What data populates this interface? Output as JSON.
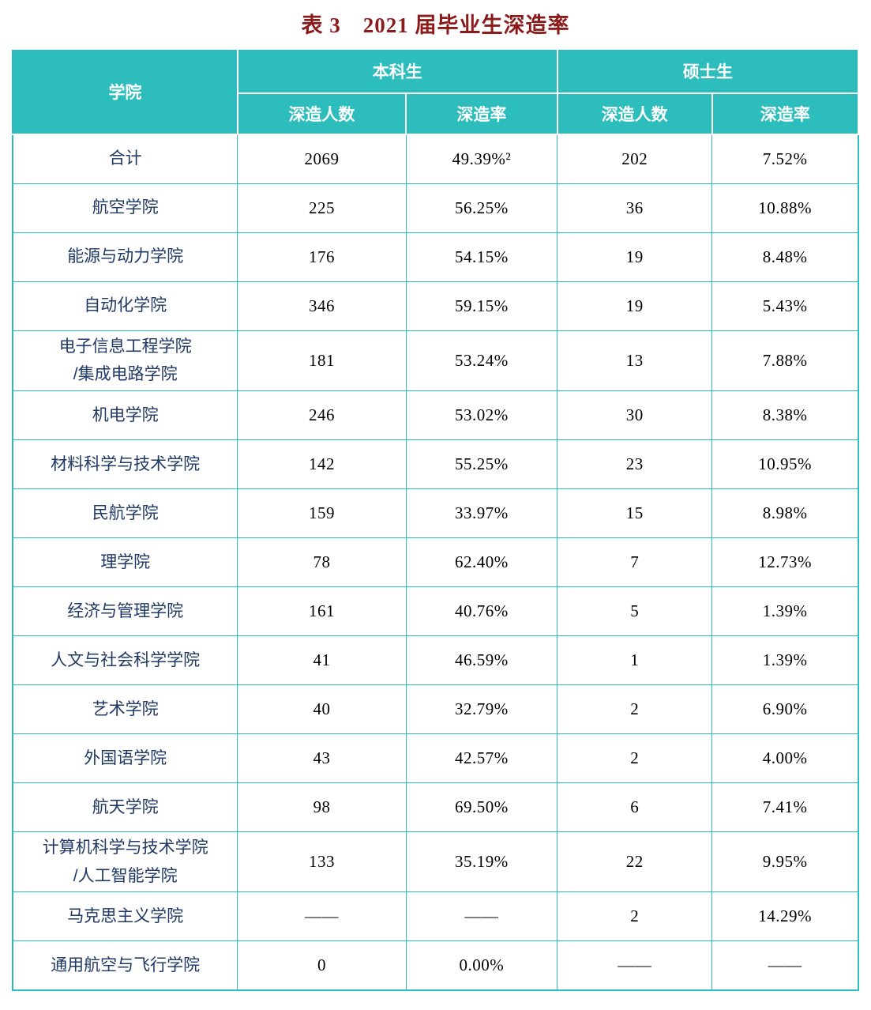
{
  "title": "表 3　2021 届毕业生深造率",
  "colors": {
    "header_bg": "#2ebdbd",
    "header_text": "#ffffff",
    "title_text": "#8b1a1a",
    "college_text": "#1f3864",
    "body_text": "#000000",
    "border": "#2ebdbd"
  },
  "table": {
    "headers": {
      "college": "学院",
      "undergrad_group": "本科生",
      "master_group": "硕士生",
      "count": "深造人数",
      "rate": "深造率"
    },
    "rows": [
      {
        "college": "合计",
        "ug_count": "2069",
        "ug_rate": "49.39%²",
        "ms_count": "202",
        "ms_rate": "7.52%"
      },
      {
        "college": "航空学院",
        "ug_count": "225",
        "ug_rate": "56.25%",
        "ms_count": "36",
        "ms_rate": "10.88%"
      },
      {
        "college": "能源与动力学院",
        "ug_count": "176",
        "ug_rate": "54.15%",
        "ms_count": "19",
        "ms_rate": "8.48%"
      },
      {
        "college": "自动化学院",
        "ug_count": "346",
        "ug_rate": "59.15%",
        "ms_count": "19",
        "ms_rate": "5.43%"
      },
      {
        "college": "电子信息工程学院\n/集成电路学院",
        "ug_count": "181",
        "ug_rate": "53.24%",
        "ms_count": "13",
        "ms_rate": "7.88%"
      },
      {
        "college": "机电学院",
        "ug_count": "246",
        "ug_rate": "53.02%",
        "ms_count": "30",
        "ms_rate": "8.38%"
      },
      {
        "college": "材料科学与技术学院",
        "ug_count": "142",
        "ug_rate": "55.25%",
        "ms_count": "23",
        "ms_rate": "10.95%"
      },
      {
        "college": "民航学院",
        "ug_count": "159",
        "ug_rate": "33.97%",
        "ms_count": "15",
        "ms_rate": "8.98%"
      },
      {
        "college": "理学院",
        "ug_count": "78",
        "ug_rate": "62.40%",
        "ms_count": "7",
        "ms_rate": "12.73%"
      },
      {
        "college": "经济与管理学院",
        "ug_count": "161",
        "ug_rate": "40.76%",
        "ms_count": "5",
        "ms_rate": "1.39%"
      },
      {
        "college": "人文与社会科学学院",
        "ug_count": "41",
        "ug_rate": "46.59%",
        "ms_count": "1",
        "ms_rate": "1.39%"
      },
      {
        "college": "艺术学院",
        "ug_count": "40",
        "ug_rate": "32.79%",
        "ms_count": "2",
        "ms_rate": "6.90%"
      },
      {
        "college": "外国语学院",
        "ug_count": "43",
        "ug_rate": "42.57%",
        "ms_count": "2",
        "ms_rate": "4.00%"
      },
      {
        "college": "航天学院",
        "ug_count": "98",
        "ug_rate": "69.50%",
        "ms_count": "6",
        "ms_rate": "7.41%"
      },
      {
        "college": "计算机科学与技术学院\n/人工智能学院",
        "ug_count": "133",
        "ug_rate": "35.19%",
        "ms_count": "22",
        "ms_rate": "9.95%"
      },
      {
        "college": "马克思主义学院",
        "ug_count": "——",
        "ug_rate": "——",
        "ms_count": "2",
        "ms_rate": "14.29%"
      },
      {
        "college": "通用航空与飞行学院",
        "ug_count": "0",
        "ug_rate": "0.00%",
        "ms_count": "——",
        "ms_rate": "——"
      }
    ]
  }
}
